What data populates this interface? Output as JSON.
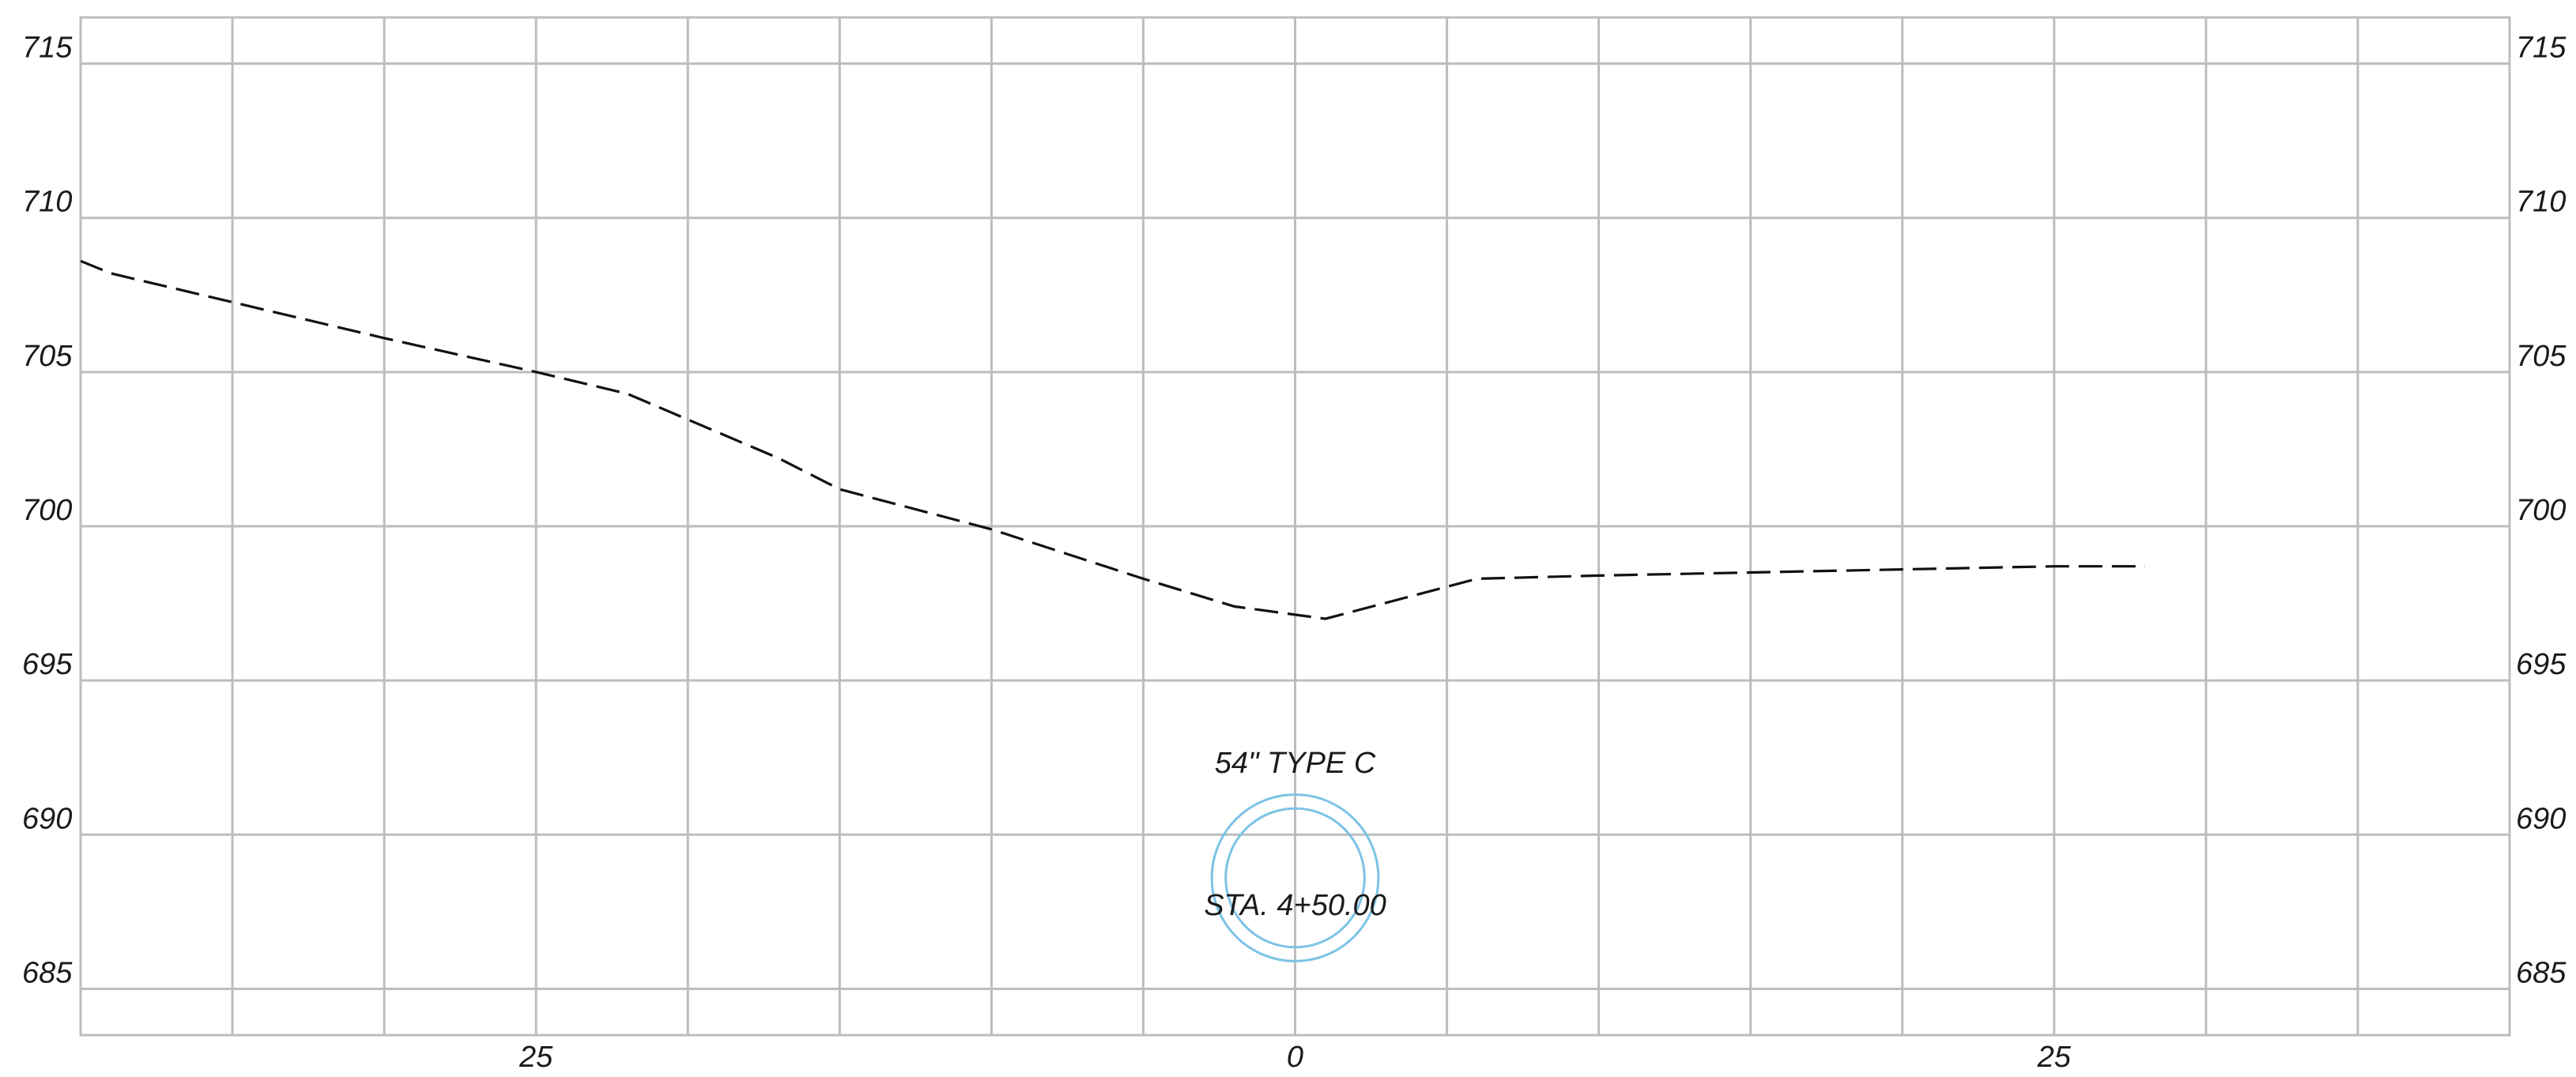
{
  "chart_data": {
    "type": "line",
    "title": "",
    "xlabel": "",
    "ylabel": "",
    "xlim": [
      -40,
      40
    ],
    "ylim": [
      683.5,
      716.5
    ],
    "grid": true,
    "x_ticks": [
      -35,
      -30,
      -25,
      -20,
      -15,
      -10,
      -5,
      0,
      5,
      10,
      15,
      20,
      25,
      30,
      35
    ],
    "x_tick_labels": [
      {
        "x": -25,
        "text": "25"
      },
      {
        "x": 0,
        "text": "0"
      },
      {
        "x": 25,
        "text": "25"
      }
    ],
    "y_ticks": [
      685,
      690,
      695,
      700,
      705,
      710,
      715
    ],
    "y_tick_labels": [
      "685",
      "690",
      "695",
      "700",
      "705",
      "710",
      "715"
    ],
    "series": [
      {
        "style": "dashed",
        "color": "#111111",
        "x": [
          -40,
          -39,
          -30,
          -25,
          -22,
          -17,
          -15,
          -10,
          -5,
          -2,
          1,
          6,
          10,
          15,
          20,
          25,
          28
        ],
        "y": [
          708.6,
          708.2,
          706.1,
          705.0,
          704.3,
          702.2,
          701.2,
          699.9,
          698.3,
          697.4,
          697.0,
          698.3,
          698.4,
          698.5,
          698.6,
          698.7,
          698.7
        ]
      }
    ],
    "annotations": [
      {
        "text": "54\" TYPE C",
        "x": 0,
        "y": 692.0
      },
      {
        "text": "STA. 4+50.00",
        "x": 0,
        "y": 687.4
      }
    ],
    "pipe": {
      "x": 0,
      "y": 688.6,
      "outer_radius": 2.7,
      "inner_radius": 2.25,
      "color": "#7cc3e6"
    }
  }
}
